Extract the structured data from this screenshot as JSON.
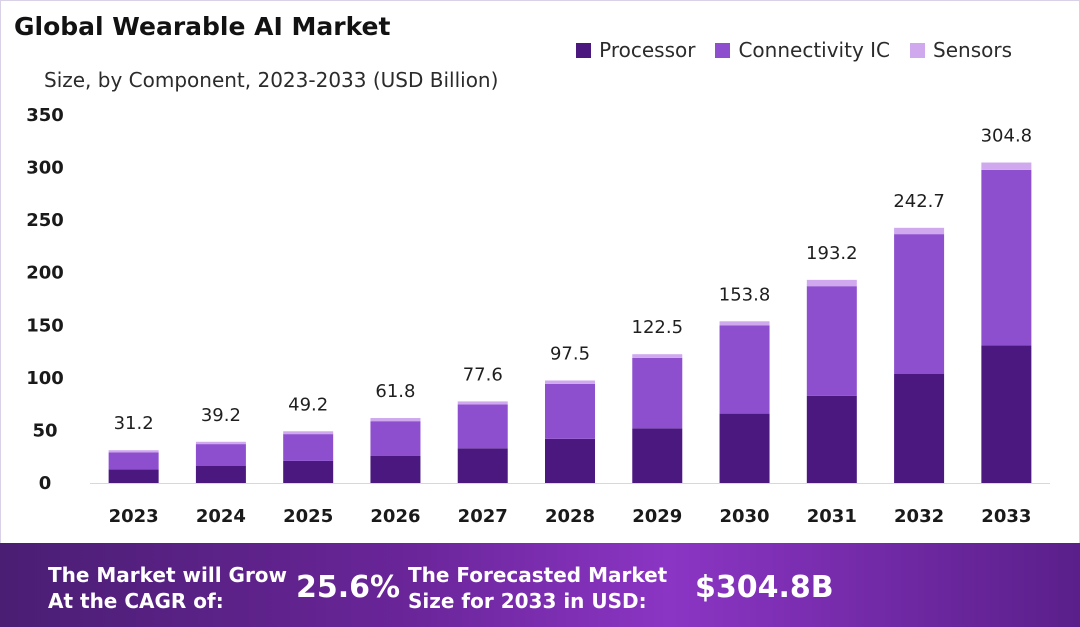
{
  "chart_data": {
    "type": "bar",
    "stacked": true,
    "title": "Global Wearable AI Market",
    "subtitle": "Size, by Component, 2023-2033 (USD Billion)",
    "categories": [
      "2023",
      "2024",
      "2025",
      "2026",
      "2027",
      "2028",
      "2029",
      "2030",
      "2031",
      "2032",
      "2033"
    ],
    "series": [
      {
        "name": "Processor",
        "color": "#4b1880",
        "values": [
          13,
          16.5,
          21,
          26,
          33,
          42,
          52,
          66,
          83,
          104,
          131
        ]
      },
      {
        "name": "Connectivity IC",
        "color": "#8e4fcf",
        "values": [
          16,
          20.5,
          25.5,
          32.8,
          41.8,
          52.3,
          67,
          83.8,
          104.2,
          132.7,
          166.8
        ]
      },
      {
        "name": "Sensors",
        "color": "#cfa8ee",
        "values": [
          2.2,
          2.2,
          2.7,
          3,
          2.8,
          3.2,
          3.5,
          4,
          6,
          6,
          7
        ]
      }
    ],
    "totals": [
      "31.2",
      "39.2",
      "49.2",
      "61.8",
      "77.6",
      "97.5",
      "122.5",
      "153.8",
      "193.2",
      "242.7",
      "304.8"
    ],
    "ylim": [
      0,
      350
    ],
    "yticks": [
      0,
      50,
      100,
      150,
      200,
      250,
      300,
      350
    ],
    "xlabel": "",
    "ylabel": "",
    "grid": false,
    "legend_position": "top-right"
  },
  "footer": {
    "cagr_label_line1": "The Market will Grow",
    "cagr_label_line2": "At the CAGR of:",
    "cagr_value": "25.6%",
    "forecast_label_line1": "The Forecasted Market",
    "forecast_label_line2": "Size for 2033 in USD:",
    "forecast_value": "$304.8B"
  }
}
